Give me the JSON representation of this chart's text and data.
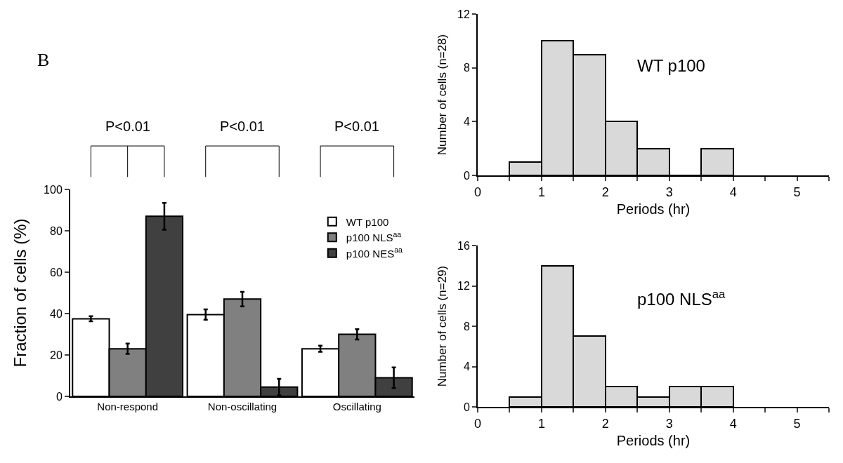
{
  "chart_data": [
    {
      "type": "bar",
      "ylabel": "Fraction of cells (%)",
      "categories": [
        "Non-respond",
        "Non-oscillating",
        "Oscillating"
      ],
      "series": [
        {
          "name": "WT p100",
          "color": "#ffffff",
          "values": [
            37.5,
            39.5,
            23
          ],
          "errors": [
            1.2,
            2.5,
            1.5
          ]
        },
        {
          "name": "p100 NLS$^{aa}$",
          "color": "#808080",
          "values": [
            23,
            47,
            30
          ],
          "errors": [
            2.5,
            3.5,
            2.5
          ]
        },
        {
          "name": "p100 NES$^{aa}$",
          "color": "#404040",
          "values": [
            87,
            4.5,
            9
          ],
          "errors": [
            6.5,
            4,
            5
          ]
        }
      ],
      "ylim": [
        0,
        100
      ],
      "yticks": [
        0,
        20,
        40,
        60,
        80,
        100
      ],
      "grid": false,
      "legend": "top right",
      "annotations": [
        "B",
        "P<0.01",
        "P<0.01",
        "P<0.01"
      ]
    },
    {
      "type": "histogram",
      "xlabel": "Periods (hr)",
      "ylabel": "Number of cells (n=28)",
      "color": "#d9d9d9",
      "bins": [
        0.5,
        1,
        1.5,
        2,
        2.5,
        3,
        3.5,
        4
      ],
      "values": [
        1,
        10,
        9,
        4,
        2,
        0,
        2
      ],
      "xlim": [
        0,
        5.5
      ],
      "xticks": [
        0,
        {
          "value": 0.5,
          "label": null
        },
        1,
        {
          "value": 1.5,
          "label": null
        },
        2,
        {
          "value": 2.5,
          "label": null
        },
        3,
        {
          "value": 3.5,
          "label": null
        },
        4,
        {
          "value": 4.5,
          "label": null
        },
        5,
        {
          "value": 5.5,
          "label": null
        }
      ],
      "ylim": [
        0,
        12
      ],
      "yticks": [
        0,
        4,
        8,
        12
      ],
      "grid": false,
      "annotations": [
        "WT p100"
      ]
    },
    {
      "type": "histogram",
      "xlabel": "Periods (hr)",
      "ylabel": "Number of cells (n=29)",
      "color": "#d9d9d9",
      "bins": [
        0.5,
        1,
        1.5,
        2,
        2.5,
        3,
        3.5,
        4
      ],
      "values": [
        1,
        14,
        7,
        2,
        1,
        2,
        2
      ],
      "xlim": [
        0,
        5.5
      ],
      "xticks": [
        0,
        {
          "value": 0.5,
          "label": null
        },
        1,
        {
          "value": 1.5,
          "label": null
        },
        2,
        {
          "value": 2.5,
          "label": null
        },
        3,
        {
          "value": 3.5,
          "label": null
        },
        4,
        {
          "value": 4.5,
          "label": null
        },
        5,
        {
          "value": 5.5,
          "label": null
        }
      ],
      "ylim": [
        0,
        16
      ],
      "yticks": [
        0,
        4,
        8,
        12,
        16
      ],
      "grid": false,
      "annotations": [
        "p100 NLS$^{aa}$"
      ]
    }
  ]
}
